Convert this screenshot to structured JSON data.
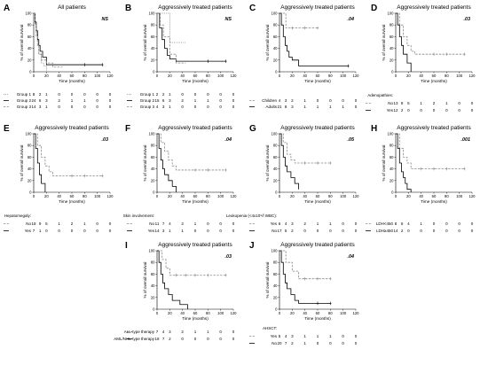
{
  "xlabel": "Time (months)",
  "ylabel": "% of overall survival",
  "chart_data": [
    {
      "type": "line",
      "panel": "A",
      "title": "All patients",
      "pvalue": "NS",
      "xlim": [
        0,
        120
      ],
      "ylim": [
        0,
        100
      ],
      "xticks": [
        "0",
        "20",
        "40",
        "60",
        "80",
        "100",
        "120"
      ],
      "yticks": [
        "0",
        "20",
        "40",
        "60",
        "80",
        "100"
      ],
      "risk_times": [
        0,
        10,
        20,
        40,
        60,
        80,
        100,
        120
      ],
      "series": [
        {
          "name": "Group 1",
          "style": "dotted",
          "color": "#888888",
          "censor": [],
          "x": [
            0,
            2,
            4,
            6,
            8,
            12,
            16,
            20
          ],
          "y": [
            100,
            85,
            65,
            45,
            30,
            15,
            10,
            0
          ],
          "risk": [
            "8",
            "2",
            "1",
            "0",
            "0",
            "0",
            "0",
            "0"
          ]
        },
        {
          "name": "Group 2",
          "style": "solid",
          "color": "#000000",
          "censor": [
            80,
            108
          ],
          "x": [
            0,
            2,
            4,
            6,
            8,
            10,
            14,
            20,
            30,
            108
          ],
          "y": [
            100,
            85,
            70,
            55,
            45,
            35,
            25,
            12,
            12,
            12
          ],
          "risk": [
            "24",
            "6",
            "3",
            "2",
            "1",
            "1",
            "0",
            "0"
          ]
        },
        {
          "name": "Group 3",
          "style": "dashed",
          "color": "#888888",
          "censor": [],
          "x": [
            0,
            2,
            4,
            6,
            8,
            12,
            20,
            30,
            45
          ],
          "y": [
            100,
            80,
            60,
            45,
            30,
            20,
            15,
            8,
            8
          ],
          "risk": [
            "14",
            "3",
            "1",
            "0",
            "0",
            "0",
            "0",
            "0"
          ]
        }
      ]
    },
    {
      "type": "line",
      "panel": "B",
      "title": "Aggressively treated patients",
      "pvalue": "NS",
      "xlim": [
        0,
        120
      ],
      "ylim": [
        0,
        100
      ],
      "xticks": [
        "0",
        "20",
        "40",
        "60",
        "80",
        "100",
        "120"
      ],
      "yticks": [
        "0",
        "20",
        "40",
        "60",
        "80",
        "100"
      ],
      "risk_times": [
        0,
        10,
        20,
        40,
        60,
        80,
        100,
        120
      ],
      "series": [
        {
          "name": "Group 1",
          "style": "dotted",
          "color": "#888888",
          "censor": [],
          "x": [
            0,
            18,
            20,
            45
          ],
          "y": [
            100,
            100,
            50,
            50
          ],
          "risk": [
            "2",
            "2",
            "1",
            "0",
            "0",
            "0",
            "0",
            "0"
          ]
        },
        {
          "name": "Group 2",
          "style": "solid",
          "color": "#000000",
          "censor": [
            80,
            108
          ],
          "x": [
            0,
            4,
            8,
            12,
            16,
            20,
            30,
            108
          ],
          "y": [
            100,
            75,
            55,
            40,
            28,
            22,
            18,
            18
          ],
          "risk": [
            "15",
            "6",
            "3",
            "2",
            "1",
            "1",
            "0",
            "0"
          ]
        },
        {
          "name": "Group 3",
          "style": "dashed",
          "color": "#888888",
          "censor": [],
          "x": [
            0,
            5,
            10,
            20,
            30,
            45
          ],
          "y": [
            100,
            80,
            60,
            30,
            15,
            15
          ],
          "risk": [
            "4",
            "3",
            "1",
            "0",
            "0",
            "0",
            "0",
            "0"
          ]
        }
      ]
    },
    {
      "type": "line",
      "panel": "C",
      "title": "Aggressively treated patients",
      "pvalue": ".04",
      "xlim": [
        0,
        120
      ],
      "ylim": [
        0,
        100
      ],
      "xticks": [
        "0",
        "20",
        "40",
        "60",
        "80",
        "100",
        "120"
      ],
      "yticks": [
        "0",
        "20",
        "40",
        "60",
        "80",
        "100"
      ],
      "risk_times": [
        0,
        10,
        20,
        40,
        60,
        80,
        100,
        120
      ],
      "series": [
        {
          "name": "Children",
          "style": "dashed",
          "color": "#888888",
          "censor": [
            20,
            40,
            60
          ],
          "x": [
            0,
            10,
            60
          ],
          "y": [
            100,
            75,
            75
          ],
          "risk": [
            "4",
            "3",
            "2",
            "1",
            "0",
            "0",
            "0",
            "0"
          ]
        },
        {
          "name": "Adults",
          "style": "solid",
          "color": "#000000",
          "censor": [
            108
          ],
          "x": [
            0,
            3,
            6,
            9,
            12,
            15,
            20,
            30,
            108
          ],
          "y": [
            100,
            80,
            60,
            45,
            35,
            25,
            20,
            10,
            10
          ],
          "risk": [
            "21",
            "8",
            "3",
            "1",
            "1",
            "1",
            "1",
            "0"
          ]
        }
      ]
    },
    {
      "type": "line",
      "panel": "D",
      "title": "Aggressively treated patients",
      "pvalue": ".03",
      "xlim": [
        0,
        120
      ],
      "ylim": [
        0,
        100
      ],
      "xticks": [
        "0",
        "20",
        "40",
        "60",
        "80",
        "100",
        "120"
      ],
      "yticks": [
        "0",
        "20",
        "40",
        "60",
        "80",
        "100"
      ],
      "risk_times": [
        0,
        10,
        20,
        40,
        60,
        80,
        100,
        120
      ],
      "legend_title": "Adenopathies:",
      "series": [
        {
          "name": "No",
          "style": "dashed",
          "color": "#888888",
          "censor": [
            60,
            80,
            108
          ],
          "x": [
            0,
            6,
            12,
            18,
            24,
            30,
            108
          ],
          "y": [
            100,
            80,
            60,
            45,
            35,
            30,
            30
          ],
          "risk": [
            "13",
            "8",
            "5",
            "1",
            "2",
            "1",
            "0",
            "0"
          ]
        },
        {
          "name": "Yes",
          "style": "solid",
          "color": "#000000",
          "censor": [],
          "x": [
            0,
            3,
            6,
            9,
            12,
            18,
            24
          ],
          "y": [
            100,
            80,
            60,
            45,
            30,
            15,
            0
          ],
          "risk": [
            "12",
            "2",
            "0",
            "0",
            "0",
            "0",
            "0",
            "0"
          ]
        }
      ]
    },
    {
      "type": "line",
      "panel": "E",
      "title": "Aggressively treated patients",
      "pvalue": ".03",
      "xlim": [
        0,
        120
      ],
      "ylim": [
        0,
        100
      ],
      "xticks": [
        "0",
        "20",
        "40",
        "60",
        "80",
        "100",
        "120"
      ],
      "yticks": [
        "0",
        "20",
        "40",
        "60",
        "80",
        "100"
      ],
      "risk_times": [
        0,
        10,
        20,
        40,
        60,
        80,
        100,
        120
      ],
      "legend_title": "Hepatomegaly:",
      "series": [
        {
          "name": "No",
          "style": "dashed",
          "color": "#888888",
          "censor": [
            60,
            80,
            108
          ],
          "x": [
            0,
            6,
            12,
            18,
            24,
            30,
            108
          ],
          "y": [
            100,
            80,
            60,
            45,
            35,
            28,
            28
          ],
          "risk": [
            "18",
            "9",
            "5",
            "1",
            "2",
            "1",
            "0",
            "0"
          ]
        },
        {
          "name": "Yes",
          "style": "solid",
          "color": "#000000",
          "censor": [],
          "x": [
            0,
            3,
            6,
            9,
            12,
            18
          ],
          "y": [
            100,
            75,
            50,
            30,
            15,
            0
          ],
          "risk": [
            "7",
            "1",
            "0",
            "0",
            "0",
            "0",
            "0",
            "0"
          ]
        }
      ]
    },
    {
      "type": "line",
      "panel": "F",
      "title": "Aggressively treated patients",
      "pvalue": ".04",
      "xlim": [
        0,
        120
      ],
      "ylim": [
        0,
        100
      ],
      "xticks": [
        "0",
        "20",
        "40",
        "60",
        "80",
        "100",
        "120"
      ],
      "yticks": [
        "0",
        "20",
        "40",
        "60",
        "80",
        "100"
      ],
      "risk_times": [
        0,
        10,
        20,
        40,
        60,
        80,
        100,
        120
      ],
      "legend_title": "Skin involvement:",
      "series": [
        {
          "name": "No",
          "style": "dashed",
          "color": "#888888",
          "censor": [
            60,
            80,
            108
          ],
          "x": [
            0,
            6,
            12,
            18,
            24,
            30,
            108
          ],
          "y": [
            100,
            85,
            70,
            55,
            45,
            38,
            38
          ],
          "risk": [
            "11",
            "7",
            "4",
            "2",
            "1",
            "0",
            "0",
            "0"
          ]
        },
        {
          "name": "Yes",
          "style": "solid",
          "color": "#000000",
          "censor": [],
          "x": [
            0,
            3,
            6,
            9,
            12,
            18,
            24,
            30
          ],
          "y": [
            100,
            75,
            55,
            40,
            30,
            20,
            10,
            0
          ],
          "risk": [
            "14",
            "3",
            "1",
            "1",
            "0",
            "0",
            "0",
            "0"
          ]
        }
      ]
    },
    {
      "type": "line",
      "panel": "G",
      "title": "Aggressively treated patients",
      "pvalue": ".05",
      "xlim": [
        0,
        120
      ],
      "ylim": [
        0,
        100
      ],
      "xticks": [
        "0",
        "20",
        "40",
        "60",
        "80",
        "100",
        "120"
      ],
      "yticks": [
        "0",
        "20",
        "40",
        "60",
        "80",
        "100"
      ],
      "risk_times": [
        0,
        10,
        20,
        40,
        60,
        80,
        100,
        120
      ],
      "legend_title": "Leukopenia (<4x10⁹/l WBC):",
      "series": [
        {
          "name": "Yes",
          "style": "dashed",
          "color": "#888888",
          "censor": [
            40,
            60,
            80
          ],
          "x": [
            0,
            6,
            12,
            18,
            24,
            80
          ],
          "y": [
            100,
            85,
            65,
            55,
            50,
            50
          ],
          "risk": [
            "6",
            "4",
            "3",
            "2",
            "1",
            "1",
            "0",
            "0"
          ]
        },
        {
          "name": "No",
          "style": "solid",
          "color": "#000000",
          "censor": [],
          "x": [
            0,
            3,
            6,
            9,
            12,
            18,
            24,
            30
          ],
          "y": [
            100,
            80,
            60,
            45,
            35,
            25,
            15,
            5
          ],
          "risk": [
            "17",
            "5",
            "2",
            "0",
            "0",
            "0",
            "0",
            "0"
          ]
        }
      ]
    },
    {
      "type": "line",
      "panel": "H",
      "title": "Aggressively treated patients",
      "pvalue": ".001",
      "xlim": [
        0,
        120
      ],
      "ylim": [
        0,
        100
      ],
      "xticks": [
        "0",
        "20",
        "40",
        "60",
        "80",
        "100",
        "120"
      ],
      "yticks": [
        "0",
        "20",
        "40",
        "60",
        "80",
        "100"
      ],
      "risk_times": [
        0,
        10,
        20,
        40,
        60,
        80,
        100,
        120
      ],
      "series": [
        {
          "name": "LDH<450",
          "style": "dashed",
          "color": "#888888",
          "censor": [
            40,
            60,
            80,
            108
          ],
          "x": [
            0,
            6,
            12,
            18,
            24,
            108
          ],
          "y": [
            100,
            75,
            60,
            50,
            40,
            40
          ],
          "risk": [
            "8",
            "6",
            "4",
            "1",
            "0",
            "0",
            "0",
            "0"
          ]
        },
        {
          "name": "LDH≥450",
          "style": "solid",
          "color": "#000000",
          "censor": [],
          "x": [
            0,
            3,
            6,
            9,
            12,
            15,
            18,
            24
          ],
          "y": [
            100,
            75,
            50,
            35,
            25,
            15,
            5,
            0
          ],
          "risk": [
            "14",
            "2",
            "0",
            "0",
            "0",
            "0",
            "0",
            "0"
          ]
        }
      ]
    },
    {
      "type": "line",
      "panel": "I",
      "title": "Aggressively treated patients",
      "pvalue": ".03",
      "xlim": [
        0,
        120
      ],
      "ylim": [
        0,
        100
      ],
      "xticks": [
        "0",
        "20",
        "40",
        "60",
        "80",
        "100",
        "120"
      ],
      "yticks": [
        "0",
        "20",
        "40",
        "60",
        "80",
        "100"
      ],
      "risk_times": [
        0,
        10,
        20,
        40,
        60,
        80,
        100,
        120
      ],
      "series": [
        {
          "name": "ALL-type therapy",
          "style": "dashed",
          "color": "#888888",
          "censor": [
            30,
            45,
            60,
            80,
            108
          ],
          "x": [
            0,
            8,
            14,
            20,
            108
          ],
          "y": [
            100,
            85,
            70,
            58,
            58
          ],
          "risk": [
            "7",
            "4",
            "3",
            "2",
            "1",
            "1",
            "0",
            "0"
          ]
        },
        {
          "name": "AML/NHL-type therapy",
          "style": "solid",
          "color": "#000000",
          "censor": [],
          "x": [
            0,
            3,
            6,
            9,
            12,
            18,
            24,
            36,
            48
          ],
          "y": [
            100,
            80,
            60,
            45,
            35,
            25,
            15,
            8,
            0
          ],
          "risk": [
            "18",
            "7",
            "2",
            "0",
            "0",
            "0",
            "0",
            "0"
          ]
        }
      ]
    },
    {
      "type": "line",
      "panel": "J",
      "title": "Aggressively treated patients",
      "pvalue": ".04",
      "xlim": [
        0,
        120
      ],
      "ylim": [
        0,
        100
      ],
      "xticks": [
        "0",
        "20",
        "40",
        "60",
        "80",
        "100",
        "120"
      ],
      "yticks": [
        "0",
        "20",
        "40",
        "60",
        "80",
        "100"
      ],
      "risk_times": [
        0,
        10,
        20,
        40,
        60,
        80,
        100,
        120
      ],
      "legend_title": "AHSCT:",
      "series": [
        {
          "name": "Yes",
          "style": "dashed",
          "color": "#888888",
          "censor": [
            40,
            60,
            80
          ],
          "x": [
            0,
            10,
            20,
            30,
            80
          ],
          "y": [
            100,
            80,
            65,
            52,
            52
          ],
          "risk": [
            "5",
            "4",
            "3",
            "1",
            "1",
            "1",
            "0",
            "0"
          ]
        },
        {
          "name": "No",
          "style": "solid",
          "color": "#000000",
          "censor": [
            60,
            80
          ],
          "x": [
            0,
            3,
            6,
            9,
            12,
            18,
            24,
            30,
            80
          ],
          "y": [
            100,
            80,
            60,
            45,
            35,
            25,
            15,
            10,
            10
          ],
          "risk": [
            "20",
            "7",
            "2",
            "1",
            "0",
            "0",
            "0",
            "0"
          ]
        }
      ]
    }
  ]
}
